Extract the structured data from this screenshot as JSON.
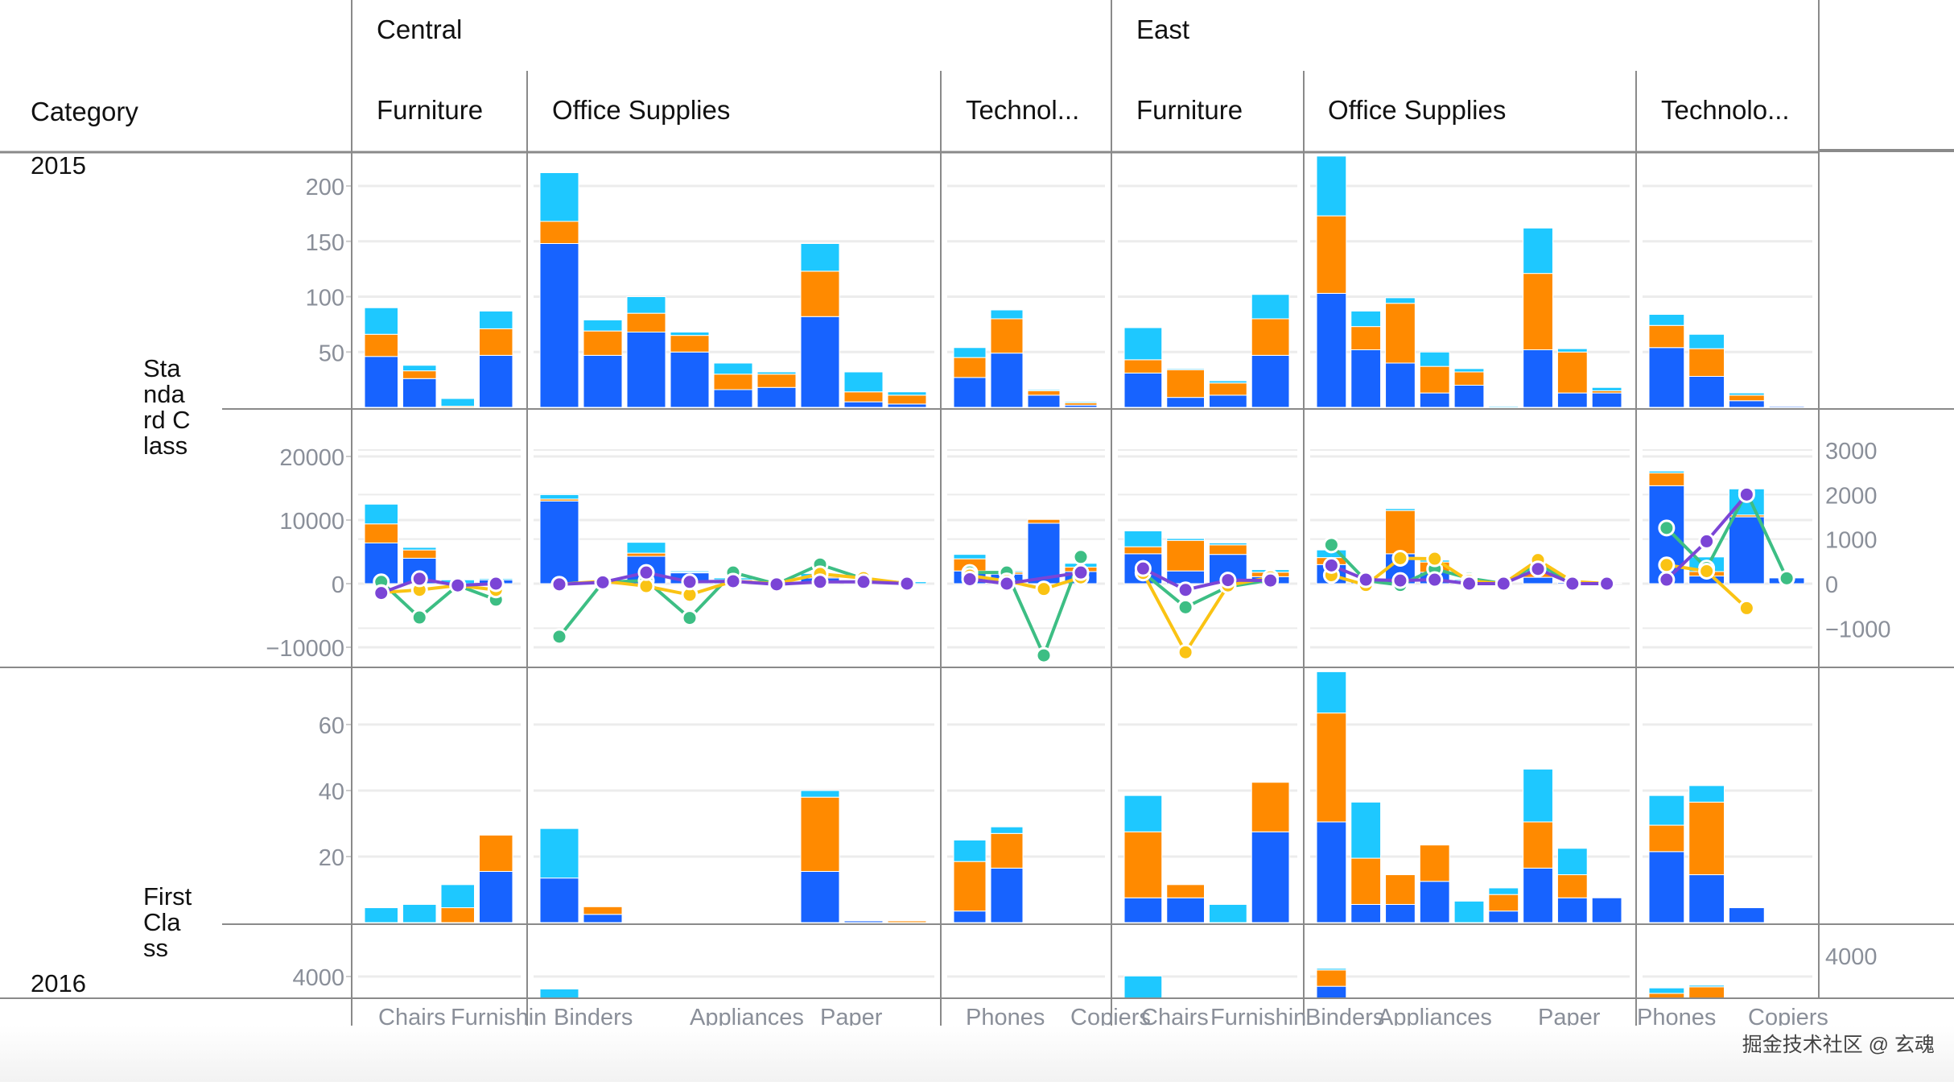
{
  "header": {
    "corner_label": "Category",
    "regions": [
      {
        "label": "Central",
        "categories": [
          "Furniture",
          "Office Supplies",
          "Technol..."
        ]
      },
      {
        "label": "East",
        "categories": [
          "Furniture",
          "Office Supplies",
          "Technolo..."
        ]
      }
    ]
  },
  "row_headers": {
    "years": [
      "2015",
      "2016"
    ],
    "ship_modes": [
      "Sta\nnda\nrd C\nlass",
      "First\nCla\nss"
    ]
  },
  "x_axis_labels": [
    {
      "panel": 0,
      "labels": [
        "Chairs",
        "Furnishin"
      ]
    },
    {
      "panel": 1,
      "labels": [
        "Binders",
        "Appliances",
        "Paper"
      ]
    },
    {
      "panel": 2,
      "labels": [
        "Phones",
        "Copiers"
      ]
    },
    {
      "panel": 3,
      "labels": [
        "Chairs",
        "Furnishin"
      ]
    },
    {
      "panel": 4,
      "labels": [
        "Binders",
        "Appliances",
        "Paper"
      ]
    },
    {
      "panel": 5,
      "labels": [
        "Phones",
        "Copiers"
      ]
    }
  ],
  "watermark": "掘金技术社区 @ 玄魂",
  "colors": {
    "series_blue": "#1763FF",
    "series_orange": "#FF8A00",
    "series_cyan": "#1EC8FF",
    "line_green": "#3DBE84",
    "line_yellow": "#FAC313",
    "line_purple": "#7B45D6",
    "axis_text": "#8A8F99",
    "grid": "#ECECEC",
    "divider": "#8A8A8A"
  },
  "chart_data": {
    "type": "bar",
    "title": "",
    "description": "Faceted stacked bar chart (rows: Year > Ship Mode, columns: Region > Category) with line overlays on profit rows",
    "stack_series": [
      "blue",
      "orange",
      "cyan"
    ],
    "line_series": [
      "green",
      "yellow",
      "purple"
    ],
    "rows": [
      {
        "name": "2015 / Standard Class - quantity",
        "y_ticks": [
          50,
          100,
          150,
          200
        ],
        "ylim": [
          0,
          225
        ],
        "panels": [
          {
            "bars": [
              [
                46,
                20,
                24
              ],
              [
                26,
                7,
                5
              ],
              [
                0,
                1,
                7
              ],
              [
                47,
                24,
                16
              ]
            ]
          },
          {
            "bars": [
              [
                148,
                20,
                44
              ],
              [
                47,
                22,
                10
              ],
              [
                68,
                17,
                15
              ],
              [
                50,
                15,
                3
              ],
              [
                16,
                14,
                10
              ],
              [
                18,
                12,
                2
              ],
              [
                82,
                41,
                25
              ],
              [
                5,
                9,
                18
              ],
              [
                3,
                8,
                3
              ]
            ]
          },
          {
            "bars": [
              [
                27,
                18,
                9
              ],
              [
                49,
                31,
                8
              ],
              [
                11,
                4,
                1
              ],
              [
                2,
                2,
                1
              ]
            ]
          },
          {
            "bars": [
              [
                31,
                12,
                29
              ],
              [
                9,
                25,
                1
              ],
              [
                11,
                11,
                2
              ],
              [
                47,
                33,
                22
              ]
            ]
          },
          {
            "bars": [
              [
                103,
                70,
                54
              ],
              [
                52,
                21,
                14
              ],
              [
                40,
                54,
                5
              ],
              [
                13,
                24,
                13
              ],
              [
                20,
                12,
                3
              ],
              [
                0,
                0,
                1
              ],
              [
                52,
                69,
                41
              ],
              [
                13,
                37,
                3
              ],
              [
                13,
                2,
                3
              ]
            ]
          },
          {
            "bars": [
              [
                54,
                20,
                10
              ],
              [
                28,
                25,
                13
              ],
              [
                6,
                5,
                2
              ],
              [
                1,
                0,
                0
              ]
            ]
          }
        ]
      },
      {
        "name": "2015 / Standard Class - sales (bars, left axis) & profit (lines, right axis)",
        "y_ticks": [
          -10000,
          0,
          10000,
          20000
        ],
        "ylim": [
          -12000,
          27000
        ],
        "y2_ticks": [
          -1000,
          0,
          1000,
          2000,
          3000
        ],
        "y2lim": [
          -1680,
          3780
        ],
        "panels": [
          {
            "bars": [
              [
                6400,
                3000,
                3100
              ],
              [
                4000,
                1300,
                400
              ],
              [
                0,
                0,
                600
              ],
              [
                600,
                0,
                200
              ]
            ],
            "lines": {
              "green": [
                40,
                -760,
                -40,
                -360
              ],
              "yellow": [
                -200,
                -140,
                -40,
                -140
              ],
              "purple": [
                -210,
                110,
                -40,
                0
              ]
            }
          },
          {
            "bars": [
              [
                13000,
                300,
                700
              ],
              [
                0,
                0,
                0
              ],
              [
                4300,
                500,
                1700
              ],
              [
                1700,
                100,
                200
              ],
              [
                400,
                200,
                300
              ],
              [
                0,
                0,
                0
              ],
              [
                900,
                200,
                500
              ],
              [
                300,
                100,
                100
              ],
              [
                0,
                0,
                300
              ]
            ],
            "lines": {
              "green": [
                -1190,
                30,
                70,
                -770,
                250,
                -10,
                430,
                110,
                0
              ],
              "yellow": [
                -15,
                55,
                -55,
                -250,
                55,
                0,
                220,
                125,
                0
              ],
              "purple": [
                -15,
                30,
                250,
                40,
                55,
                -15,
                40,
                40,
                0
              ]
            }
          },
          {
            "bars": [
              [
                2000,
                1900,
                700
              ],
              [
                1500,
                300,
                200
              ],
              [
                9500,
                600,
                0
              ],
              [
                1900,
                700,
                600
              ]
            ],
            "lines": {
              "green": [
                250,
                250,
                -1610,
                600
              ],
              "yellow": [
                180,
                60,
                -120,
                140
              ],
              "purple": [
                100,
                0,
                null,
                250
              ]
            }
          },
          {
            "bars": [
              [
                4700,
                1100,
                2500
              ],
              [
                2000,
                4800,
                300
              ],
              [
                4600,
                1500,
                300
              ],
              [
                1100,
                700,
                400
              ]
            ],
            "lines": {
              "green": [
                250,
                -530,
                -70,
                80
              ],
              "yellow": [
                240,
                -1540,
                -40,
                140
              ],
              "purple": [
                340,
                -140,
                80,
                70
              ]
            }
          },
          {
            "bars": [
              [
                3000,
                1100,
                1200
              ],
              [
                500,
                0,
                0
              ],
              [
                4700,
                6800,
                300
              ],
              [
                1800,
                1600,
                300
              ],
              [
                300,
                200,
                200
              ],
              [
                0,
                0,
                0
              ],
              [
                1000,
                800,
                500
              ],
              [
                200,
                100,
                0
              ],
              [
                100,
                0,
                0
              ]
            ],
            "lines": {
              "green": [
                870,
                70,
                -30,
                330,
                120,
                0,
                460,
                0,
                0
              ],
              "yellow": [
                190,
                -30,
                570,
                560,
                60,
                0,
                530,
                50,
                0
              ],
              "purple": [
                410,
                90,
                70,
                90,
                0,
                0,
                330,
                0,
                0
              ]
            }
          },
          {
            "bars": [
              [
                15400,
                2000,
                300
              ],
              [
                1200,
                700,
                2300
              ],
              [
                10500,
                300,
                4100
              ],
              [
                900,
                0,
                0
              ]
            ],
            "lines": {
              "green": [
                1250,
                350,
                2050,
                120
              ],
              "yellow": [
                420,
                280,
                -550,
                null
              ],
              "purple": [
                90,
                950,
                2000,
                null
              ]
            }
          }
        ]
      },
      {
        "name": "2015 / First Class - quantity",
        "y_ticks": [
          20,
          40,
          60
        ],
        "ylim": [
          0,
          76
        ],
        "panels": [
          {
            "bars": [
              [
                0,
                0,
                4.5
              ],
              [
                0,
                0,
                5.5
              ],
              [
                0,
                4.5,
                7
              ],
              [
                15.5,
                11,
                0
              ]
            ]
          },
          {
            "bars": [
              [
                13.5,
                0,
                15
              ],
              [
                2.5,
                2.3,
                0
              ],
              [
                0,
                0,
                0
              ],
              [
                0,
                0,
                0
              ],
              [
                0,
                0,
                0
              ],
              [
                0,
                0,
                0
              ],
              [
                15.5,
                22.5,
                2
              ],
              [
                0.5,
                0,
                0
              ],
              [
                0,
                0.5,
                0
              ]
            ]
          },
          {
            "bars": [
              [
                3.5,
                15,
                6.5
              ],
              [
                16.5,
                10.5,
                2
              ]
            ]
          },
          {
            "bars": [
              [
                7.5,
                20,
                11
              ],
              [
                7.5,
                4,
                0
              ],
              [
                0,
                0,
                5.5
              ],
              [
                27.5,
                15,
                0
              ]
            ]
          },
          {
            "bars": [
              [
                30.5,
                33,
                12.5
              ],
              [
                5.5,
                14,
                17
              ],
              [
                5.5,
                9,
                0
              ],
              [
                12.5,
                11,
                0
              ],
              [
                0,
                0,
                6.5
              ],
              [
                3.5,
                5,
                2
              ],
              [
                16.5,
                14,
                16
              ],
              [
                7.5,
                7,
                8
              ],
              [
                7.5,
                0,
                0
              ]
            ]
          },
          {
            "bars": [
              [
                21.5,
                8,
                9
              ],
              [
                14.5,
                22,
                5
              ],
              [
                4.5,
                0,
                0
              ]
            ]
          }
        ]
      },
      {
        "name": "2016 / Standard Class - sales (partially visible)",
        "y_ticks": [
          4000
        ],
        "y2_ticks": [
          4000
        ],
        "ylim": [
          0,
          6200
        ],
        "panels": [
          {
            "bars": []
          },
          {
            "bars": [
              [
                0,
                0,
                1700
              ]
            ]
          },
          {
            "bars": []
          },
          {
            "bars": [
              [
                0,
                0,
                4100
              ]
            ]
          },
          {
            "bars": [
              [
                2200,
                3000,
                300
              ]
            ]
          },
          {
            "bars": [
              [
                0,
                900,
                1000
              ],
              [
                0,
                2100,
                300
              ]
            ]
          }
        ]
      }
    ]
  }
}
